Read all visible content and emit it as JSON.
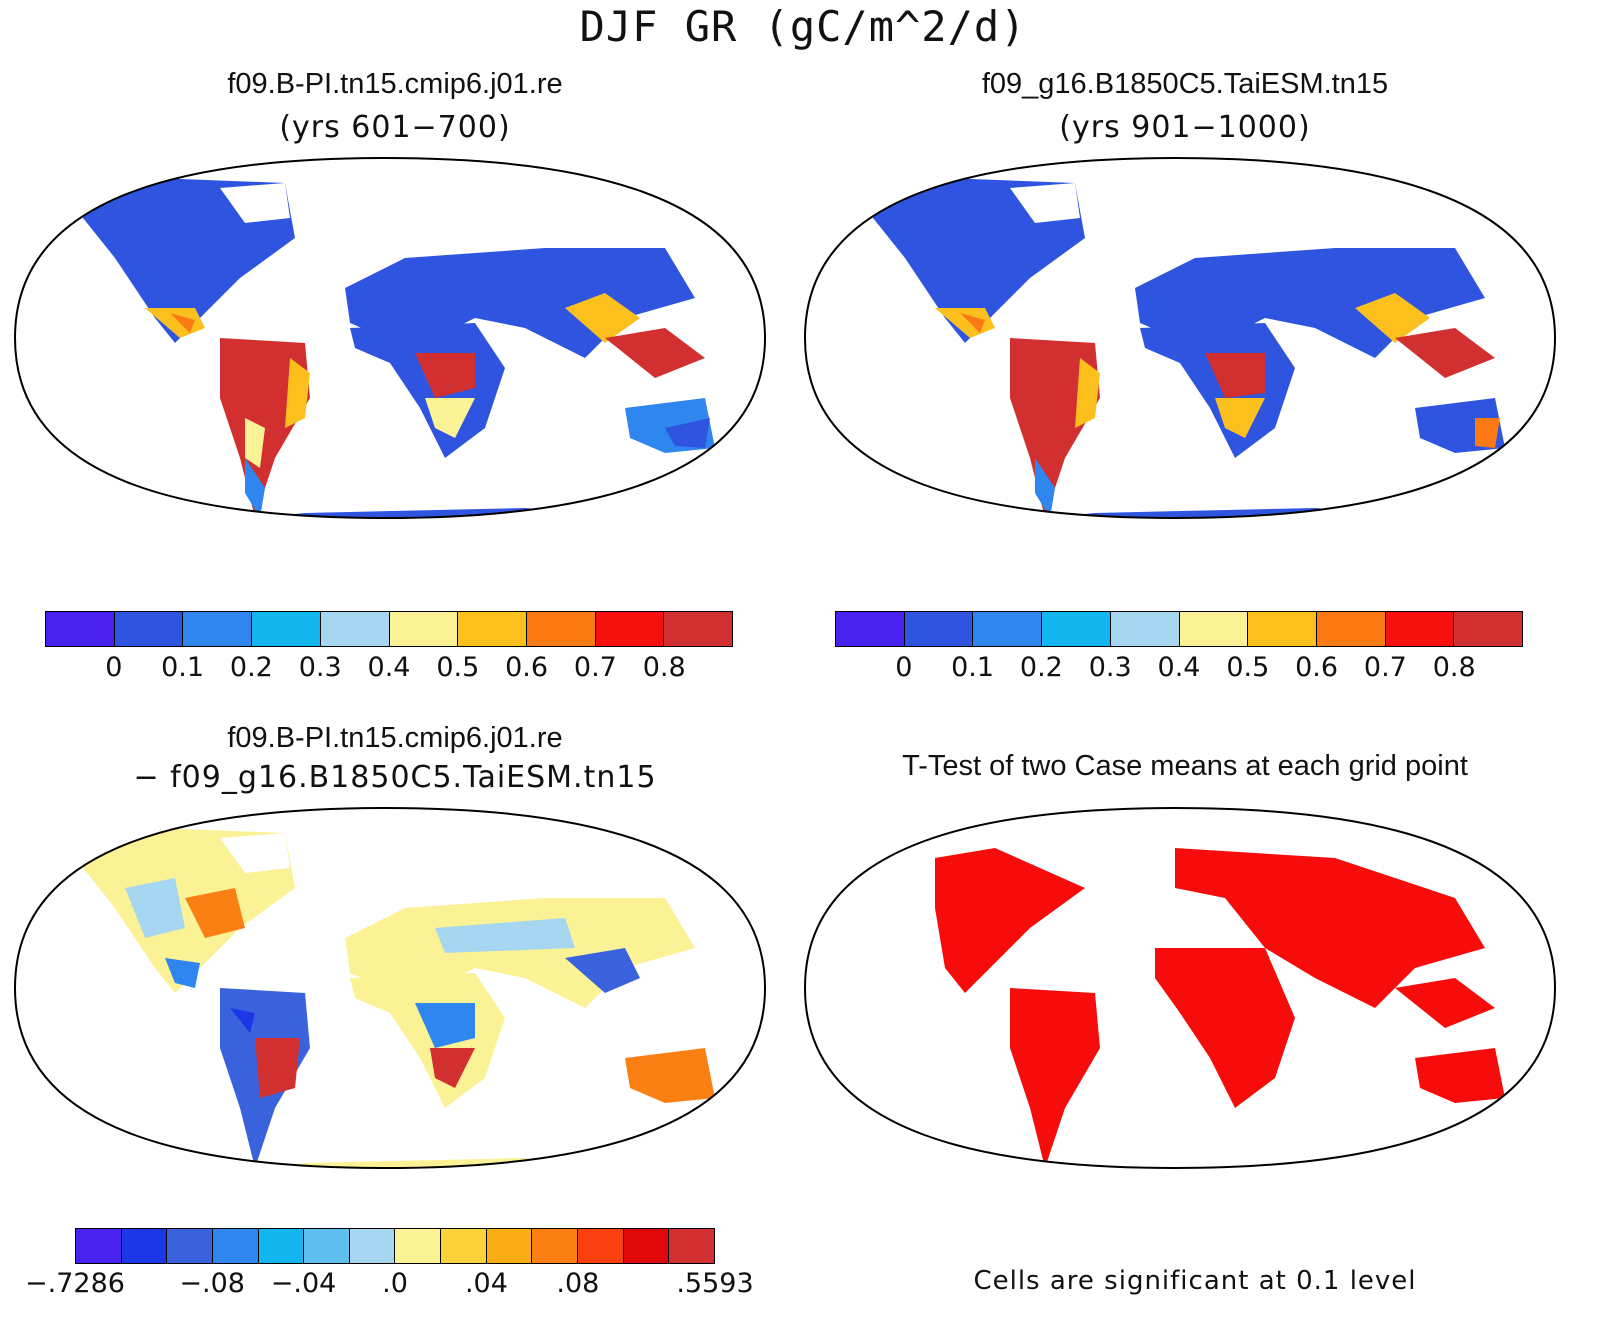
{
  "figure": {
    "title": "DJF GR (gC/m^2/d)"
  },
  "panels": {
    "case1": {
      "title": "f09.B-PI.tn15.cmip6.j01.re",
      "subtitle": "(yrs 601−700)"
    },
    "case2": {
      "title": "f09_g16.B1850C5.TaiESM.tn15",
      "subtitle": "(yrs 901−1000)"
    },
    "diff": {
      "title": "f09.B-PI.tn15.cmip6.j01.re",
      "subtitle": "− f09_g16.B1850C5.TaiESM.tn15"
    },
    "ttest": {
      "title": "T-Test of two Case means at each grid point",
      "note": "Cells are significant at 0.1 level"
    }
  },
  "colorbars": {
    "absolute": {
      "colors": [
        "#4a22f0",
        "#2f55e0",
        "#2f86ee",
        "#14b6f0",
        "#a6d6f0",
        "#fbf296",
        "#fbc01e",
        "#fb7a14",
        "#f71010",
        "#d23030"
      ],
      "labels": [
        "0",
        "0.1",
        "0.2",
        "0.3",
        "0.4",
        "0.5",
        "0.6",
        "0.7",
        "0.8"
      ]
    },
    "difference": {
      "colors": [
        "#4a22f0",
        "#1e37e6",
        "#3a62dc",
        "#2f86ee",
        "#14b6f0",
        "#5fc0f0",
        "#a6d6f0",
        "#fbf296",
        "#fbd23a",
        "#fbae14",
        "#fb8014",
        "#fb4010",
        "#e00808",
        "#d23030"
      ],
      "labels": [
        "−.7286",
        "−.08",
        "−.04",
        ".0",
        ".04",
        ".08",
        ".5593"
      ]
    },
    "significance_color": "#f70c0c",
    "ocean_color": "#ffffff",
    "land_base_abs": "#2f55e0",
    "land_base_diff": "#fbf296"
  }
}
